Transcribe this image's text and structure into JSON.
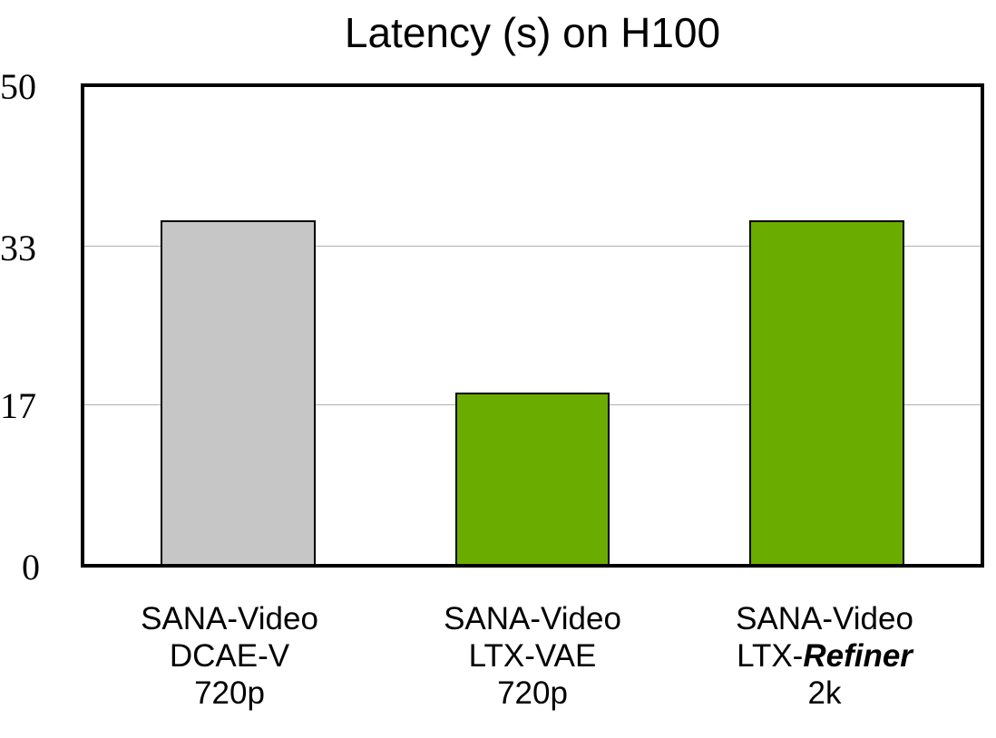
{
  "chart_data": {
    "type": "bar",
    "title": "Latency (s) on H100",
    "xlabel": "",
    "ylabel": "",
    "ylim": [
      0,
      50
    ],
    "yticks": [
      0,
      17,
      33,
      50
    ],
    "grid": true,
    "categories": [
      "SANA-Video DCAE-V 720p",
      "SANA-Video LTX-VAE 720p",
      "SANA-Video LTX-Refiner 2k"
    ],
    "values": [
      36,
      18,
      36
    ],
    "colors": [
      "#c6c6c6",
      "#6aad00",
      "#6aad00"
    ]
  },
  "title": "Latency (s) on H100",
  "yticks": {
    "t0": "0",
    "t17": "17",
    "t33": "33",
    "t50": "50"
  },
  "bars": [
    {
      "line1": "SANA-Video",
      "line2": "DCAE-V",
      "line3": "720p",
      "value": 36,
      "color": "#c6c6c6"
    },
    {
      "line1": "SANA-Video",
      "line2": "LTX-VAE",
      "line3": "720p",
      "value": 18,
      "color": "#6aad00"
    },
    {
      "line1": "SANA-Video",
      "line2_prefix": "LTX-",
      "line2_emphasis": "Refiner",
      "line3": "2k",
      "value": 36,
      "color": "#6aad00"
    }
  ]
}
